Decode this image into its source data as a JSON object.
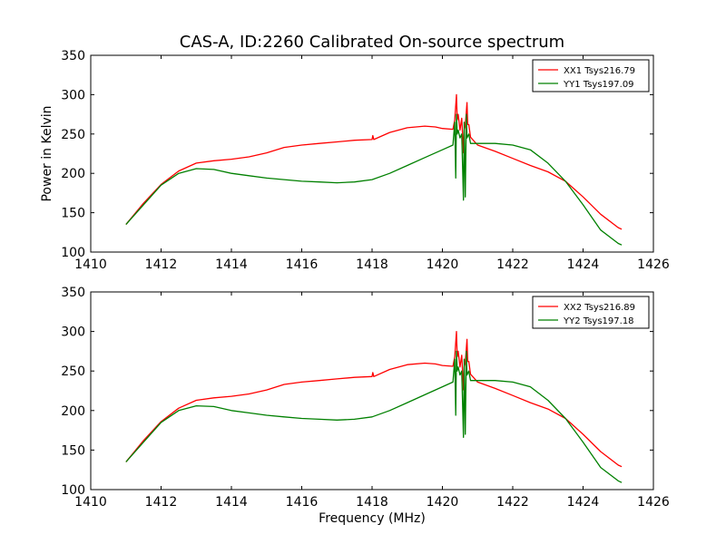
{
  "figure": {
    "title": "CAS-A, ID:2260 Calibrated On-source spectrum"
  },
  "chart_data": [
    {
      "type": "line",
      "title": "CAS-A, ID:2260 Calibrated On-source spectrum",
      "xlabel": "",
      "ylabel": "Power in Kelvin",
      "xlim": [
        1410,
        1426
      ],
      "ylim": [
        100,
        350
      ],
      "xticks": [
        1410,
        1412,
        1414,
        1416,
        1418,
        1420,
        1422,
        1424,
        1426
      ],
      "yticks": [
        100,
        150,
        200,
        250,
        300,
        350
      ],
      "legend_position": "top-right",
      "grid": false,
      "series": [
        {
          "name": "XX1 Tsys216.79",
          "color": "#ff0000",
          "x": [
            1411.0,
            1411.5,
            1412.0,
            1412.5,
            1413.0,
            1413.5,
            1414.0,
            1414.5,
            1415.0,
            1415.5,
            1416.0,
            1416.5,
            1417.0,
            1417.5,
            1418.0,
            1418.02,
            1418.05,
            1418.5,
            1419.0,
            1419.5,
            1419.8,
            1420.0,
            1420.3,
            1420.35,
            1420.4,
            1420.42,
            1420.45,
            1420.5,
            1420.55,
            1420.6,
            1420.62,
            1420.65,
            1420.7,
            1420.72,
            1420.75,
            1420.8,
            1421.0,
            1421.5,
            1422.0,
            1422.5,
            1423.0,
            1423.5,
            1424.0,
            1424.5,
            1425.0,
            1425.1
          ],
          "y": [
            135,
            162,
            186,
            203,
            213,
            216,
            218,
            221,
            226,
            233,
            236,
            238,
            240,
            242,
            243,
            248,
            243,
            252,
            258,
            260,
            259,
            257,
            256,
            268,
            300,
            268,
            275,
            255,
            270,
            226,
            255,
            260,
            290,
            262,
            262,
            246,
            236,
            228,
            219,
            210,
            202,
            190,
            170,
            148,
            131,
            129
          ]
        },
        {
          "name": "YY1 Tsys197.09",
          "color": "#008000",
          "x": [
            1411.0,
            1411.5,
            1412.0,
            1412.5,
            1413.0,
            1413.5,
            1414.0,
            1414.5,
            1415.0,
            1415.5,
            1416.0,
            1416.5,
            1417.0,
            1417.5,
            1418.0,
            1418.5,
            1419.0,
            1419.5,
            1420.0,
            1420.3,
            1420.35,
            1420.38,
            1420.4,
            1420.42,
            1420.45,
            1420.5,
            1420.55,
            1420.6,
            1420.62,
            1420.65,
            1420.68,
            1420.7,
            1420.75,
            1420.8,
            1421.0,
            1421.5,
            1422.0,
            1422.5,
            1423.0,
            1423.5,
            1424.0,
            1424.5,
            1425.0,
            1425.1
          ],
          "y": [
            135,
            160,
            185,
            200,
            206,
            205,
            200,
            197,
            194,
            192,
            190,
            189,
            188,
            189,
            192,
            200,
            210,
            220,
            230,
            236,
            265,
            194,
            275,
            250,
            255,
            245,
            250,
            166,
            265,
            170,
            275,
            245,
            250,
            238,
            238,
            238,
            236,
            230,
            213,
            190,
            160,
            128,
            111,
            109
          ]
        }
      ]
    },
    {
      "type": "line",
      "title": "",
      "xlabel": "Frequency (MHz)",
      "ylabel": "",
      "xlim": [
        1410,
        1426
      ],
      "ylim": [
        100,
        350
      ],
      "xticks": [
        1410,
        1412,
        1414,
        1416,
        1418,
        1420,
        1422,
        1424,
        1426
      ],
      "yticks": [
        100,
        150,
        200,
        250,
        300,
        350
      ],
      "legend_position": "top-right",
      "grid": false,
      "series": [
        {
          "name": "XX2 Tsys216.89",
          "color": "#ff0000",
          "x": [
            1411.0,
            1411.5,
            1412.0,
            1412.5,
            1413.0,
            1413.5,
            1414.0,
            1414.5,
            1415.0,
            1415.5,
            1416.0,
            1416.5,
            1417.0,
            1417.5,
            1418.0,
            1418.02,
            1418.05,
            1418.5,
            1419.0,
            1419.5,
            1419.8,
            1420.0,
            1420.3,
            1420.35,
            1420.4,
            1420.42,
            1420.45,
            1420.5,
            1420.55,
            1420.6,
            1420.62,
            1420.65,
            1420.7,
            1420.72,
            1420.75,
            1420.8,
            1421.0,
            1421.5,
            1422.0,
            1422.5,
            1423.0,
            1423.5,
            1424.0,
            1424.5,
            1425.0,
            1425.1
          ],
          "y": [
            135,
            162,
            186,
            203,
            213,
            216,
            218,
            221,
            226,
            233,
            236,
            238,
            240,
            242,
            243,
            248,
            243,
            252,
            258,
            260,
            259,
            257,
            256,
            268,
            300,
            268,
            275,
            255,
            270,
            226,
            255,
            260,
            290,
            262,
            262,
            246,
            236,
            228,
            219,
            210,
            202,
            190,
            170,
            148,
            131,
            129
          ]
        },
        {
          "name": "YY2 Tsys197.18",
          "color": "#008000",
          "x": [
            1411.0,
            1411.5,
            1412.0,
            1412.5,
            1413.0,
            1413.5,
            1414.0,
            1414.5,
            1415.0,
            1415.5,
            1416.0,
            1416.5,
            1417.0,
            1417.5,
            1418.0,
            1418.5,
            1419.0,
            1419.5,
            1420.0,
            1420.3,
            1420.35,
            1420.38,
            1420.4,
            1420.42,
            1420.45,
            1420.5,
            1420.55,
            1420.6,
            1420.62,
            1420.65,
            1420.68,
            1420.7,
            1420.75,
            1420.8,
            1421.0,
            1421.5,
            1422.0,
            1422.5,
            1423.0,
            1423.5,
            1424.0,
            1424.5,
            1425.0,
            1425.1
          ],
          "y": [
            135,
            160,
            185,
            200,
            206,
            205,
            200,
            197,
            194,
            192,
            190,
            189,
            188,
            189,
            192,
            200,
            210,
            220,
            230,
            236,
            265,
            194,
            275,
            250,
            255,
            245,
            250,
            166,
            265,
            170,
            275,
            245,
            250,
            238,
            238,
            238,
            236,
            230,
            213,
            190,
            160,
            128,
            111,
            109
          ]
        }
      ]
    }
  ]
}
